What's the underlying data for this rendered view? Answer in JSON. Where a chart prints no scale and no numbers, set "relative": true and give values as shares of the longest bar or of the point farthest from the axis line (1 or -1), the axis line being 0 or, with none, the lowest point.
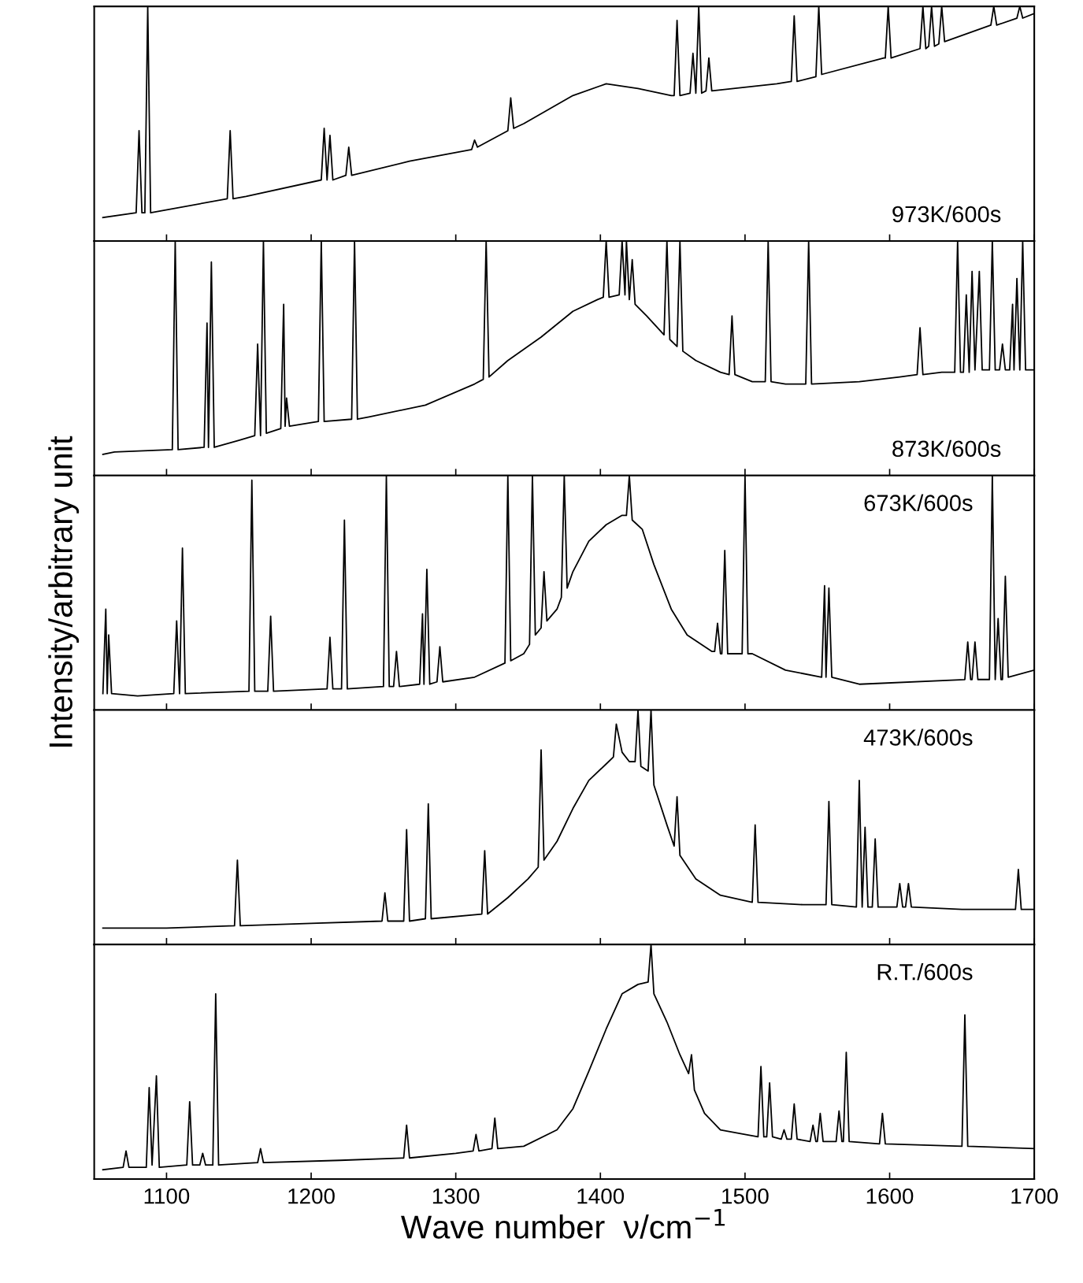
{
  "chart_data": [
    {
      "type": "line",
      "relative": true,
      "color": "#000000",
      "xlim": [
        1050,
        1700
      ],
      "xticks": [
        1100,
        1200,
        1300,
        1400,
        1500,
        1600,
        1700
      ],
      "tick_labels": false,
      "grid": false,
      "legend": false,
      "annotations": [
        "973K/600s"
      ],
      "x": [
        1056,
        1079,
        1081,
        1083,
        1085,
        1087,
        1089,
        1098,
        1142,
        1144,
        1146,
        1155,
        1207,
        1209,
        1211,
        1213,
        1215,
        1224,
        1226,
        1228,
        1268,
        1311,
        1313,
        1315,
        1336,
        1338,
        1340,
        1347,
        1381,
        1404,
        1426,
        1449,
        1451,
        1453,
        1455,
        1462,
        1464,
        1466,
        1468,
        1470,
        1473,
        1475,
        1477,
        1522,
        1532,
        1534,
        1536,
        1549,
        1551,
        1553,
        1596,
        1597,
        1599,
        1601,
        1621,
        1623,
        1625,
        1627,
        1629,
        1631,
        1634,
        1636,
        1638,
        1670,
        1672,
        1674,
        1688,
        1690,
        1692,
        1700
      ],
      "values": [
        0.1,
        0.12,
        0.47,
        0.12,
        0.12,
        1.0,
        0.12,
        0.13,
        0.18,
        0.47,
        0.18,
        0.19,
        0.26,
        0.48,
        0.26,
        0.45,
        0.26,
        0.28,
        0.4,
        0.28,
        0.34,
        0.39,
        0.43,
        0.4,
        0.47,
        0.61,
        0.48,
        0.5,
        0.62,
        0.67,
        0.65,
        0.62,
        0.62,
        0.94,
        0.62,
        0.63,
        0.8,
        0.63,
        1.0,
        0.63,
        0.64,
        0.78,
        0.64,
        0.67,
        0.68,
        0.96,
        0.68,
        0.7,
        1.0,
        0.71,
        0.78,
        0.78,
        1.0,
        0.78,
        0.82,
        1.0,
        0.82,
        0.83,
        1.0,
        0.83,
        0.84,
        1.0,
        0.85,
        0.92,
        1.0,
        0.92,
        0.95,
        1.0,
        0.95,
        0.97
      ]
    },
    {
      "type": "line",
      "relative": true,
      "color": "#000000",
      "xlim": [
        1050,
        1700
      ],
      "xticks": [
        1100,
        1200,
        1300,
        1400,
        1500,
        1600,
        1700
      ],
      "tick_labels": false,
      "grid": false,
      "legend": false,
      "annotations": [
        "873K/600s"
      ],
      "x": [
        1056,
        1064,
        1104,
        1106,
        1108,
        1126,
        1128,
        1129,
        1131,
        1133,
        1150,
        1161,
        1163,
        1165,
        1167,
        1169,
        1179,
        1181,
        1182,
        1183,
        1185,
        1205,
        1207,
        1209,
        1228,
        1230,
        1232,
        1240,
        1279,
        1313,
        1319,
        1321,
        1323,
        1336,
        1359,
        1381,
        1398,
        1402,
        1404,
        1406,
        1413,
        1415,
        1417,
        1418,
        1420,
        1422,
        1424,
        1432,
        1444,
        1446,
        1448,
        1453,
        1455,
        1457,
        1466,
        1483,
        1489,
        1491,
        1493,
        1505,
        1514,
        1516,
        1518,
        1528,
        1542,
        1544,
        1546,
        1579,
        1607,
        1619,
        1621,
        1623,
        1636,
        1645,
        1647,
        1649,
        1651,
        1653,
        1655,
        1657,
        1659,
        1662,
        1664,
        1669,
        1671,
        1673,
        1676,
        1678,
        1680,
        1683,
        1685,
        1686,
        1688,
        1690,
        1692,
        1694,
        1700
      ],
      "values": [
        0.09,
        0.1,
        0.11,
        1.0,
        0.11,
        0.12,
        0.65,
        0.12,
        0.91,
        0.12,
        0.15,
        0.17,
        0.56,
        0.17,
        1.0,
        0.18,
        0.2,
        0.73,
        0.21,
        0.33,
        0.21,
        0.23,
        1.0,
        0.23,
        0.24,
        1.0,
        0.24,
        0.25,
        0.3,
        0.39,
        0.41,
        1.0,
        0.42,
        0.49,
        0.59,
        0.7,
        0.75,
        0.76,
        1.0,
        0.76,
        0.77,
        1.0,
        0.77,
        1.0,
        0.75,
        0.92,
        0.73,
        0.68,
        0.6,
        1.0,
        0.58,
        0.55,
        1.0,
        0.53,
        0.49,
        0.44,
        0.43,
        0.68,
        0.43,
        0.4,
        0.4,
        1.0,
        0.4,
        0.39,
        0.39,
        1.0,
        0.39,
        0.4,
        0.42,
        0.43,
        0.63,
        0.43,
        0.44,
        0.44,
        1.0,
        0.44,
        0.44,
        0.77,
        0.44,
        0.87,
        0.45,
        0.87,
        0.45,
        0.45,
        1.0,
        0.45,
        0.45,
        0.56,
        0.45,
        0.45,
        0.73,
        0.45,
        0.84,
        0.45,
        1.0,
        0.45,
        0.45
      ]
    },
    {
      "type": "line",
      "relative": true,
      "color": "#000000",
      "xlim": [
        1050,
        1700
      ],
      "xticks": [
        1100,
        1200,
        1300,
        1400,
        1500,
        1600,
        1700
      ],
      "tick_labels": false,
      "grid": false,
      "legend": false,
      "ylabel": "Intensity/arbitrary unit",
      "annotations": [
        "673K/600s"
      ],
      "x": [
        1056,
        1058,
        1059,
        1060,
        1062,
        1080,
        1105,
        1107,
        1109,
        1111,
        1113,
        1157,
        1159,
        1161,
        1170,
        1172,
        1174,
        1211,
        1213,
        1215,
        1221,
        1223,
        1225,
        1250,
        1252,
        1254,
        1257,
        1259,
        1261,
        1275,
        1277,
        1278,
        1280,
        1282,
        1287,
        1289,
        1291,
        1313,
        1334,
        1336,
        1338,
        1347,
        1351,
        1353,
        1355,
        1359,
        1361,
        1363,
        1370,
        1373,
        1375,
        1377,
        1381,
        1392,
        1404,
        1415,
        1418,
        1420,
        1422,
        1429,
        1437,
        1449,
        1460,
        1477,
        1479,
        1481,
        1483,
        1484,
        1486,
        1488,
        1498,
        1500,
        1502,
        1505,
        1528,
        1553,
        1555,
        1556,
        1558,
        1560,
        1579,
        1652,
        1654,
        1656,
        1657,
        1659,
        1661,
        1669,
        1671,
        1673,
        1675,
        1677,
        1678,
        1680,
        1682,
        1700
      ],
      "values": [
        0.07,
        0.43,
        0.07,
        0.32,
        0.07,
        0.06,
        0.07,
        0.38,
        0.07,
        0.69,
        0.07,
        0.08,
        0.98,
        0.08,
        0.08,
        0.4,
        0.08,
        0.09,
        0.31,
        0.09,
        0.09,
        0.81,
        0.09,
        0.1,
        1.0,
        0.1,
        0.1,
        0.25,
        0.1,
        0.11,
        0.41,
        0.11,
        0.6,
        0.11,
        0.12,
        0.27,
        0.12,
        0.14,
        0.2,
        1.0,
        0.21,
        0.24,
        0.28,
        1.0,
        0.32,
        0.35,
        0.59,
        0.38,
        0.43,
        0.48,
        1.0,
        0.52,
        0.59,
        0.72,
        0.79,
        0.83,
        0.83,
        1.0,
        0.81,
        0.77,
        0.62,
        0.43,
        0.32,
        0.25,
        0.25,
        0.37,
        0.24,
        0.24,
        0.68,
        0.24,
        0.24,
        1.0,
        0.24,
        0.24,
        0.17,
        0.14,
        0.53,
        0.14,
        0.52,
        0.14,
        0.11,
        0.13,
        0.29,
        0.13,
        0.13,
        0.29,
        0.13,
        0.13,
        1.0,
        0.13,
        0.39,
        0.13,
        0.13,
        0.57,
        0.14,
        0.17
      ]
    },
    {
      "type": "line",
      "relative": true,
      "color": "#000000",
      "xlim": [
        1050,
        1700
      ],
      "xticks": [
        1100,
        1200,
        1300,
        1400,
        1500,
        1600,
        1700
      ],
      "tick_labels": false,
      "grid": false,
      "legend": false,
      "annotations": [
        "473K/600s"
      ],
      "x": [
        1056,
        1100,
        1147,
        1149,
        1151,
        1200,
        1249,
        1251,
        1253,
        1264,
        1266,
        1268,
        1279,
        1281,
        1283,
        1318,
        1320,
        1322,
        1336,
        1350,
        1357,
        1359,
        1361,
        1370,
        1381,
        1392,
        1404,
        1409,
        1411,
        1415,
        1420,
        1424,
        1426,
        1428,
        1433,
        1435,
        1437,
        1446,
        1451,
        1453,
        1455,
        1466,
        1483,
        1505,
        1507,
        1509,
        1540,
        1556,
        1558,
        1560,
        1577,
        1579,
        1581,
        1583,
        1585,
        1588,
        1590,
        1592,
        1605,
        1607,
        1609,
        1611,
        1613,
        1615,
        1650,
        1687,
        1689,
        1691,
        1700
      ],
      "values": [
        0.07,
        0.07,
        0.08,
        0.36,
        0.08,
        0.09,
        0.1,
        0.22,
        0.1,
        0.1,
        0.49,
        0.1,
        0.11,
        0.6,
        0.11,
        0.13,
        0.4,
        0.13,
        0.2,
        0.28,
        0.33,
        0.83,
        0.36,
        0.44,
        0.58,
        0.7,
        0.77,
        0.8,
        0.94,
        0.82,
        0.78,
        0.78,
        1.0,
        0.76,
        0.74,
        1.0,
        0.68,
        0.51,
        0.42,
        0.63,
        0.38,
        0.28,
        0.21,
        0.18,
        0.51,
        0.18,
        0.17,
        0.17,
        0.61,
        0.17,
        0.16,
        0.7,
        0.16,
        0.5,
        0.16,
        0.16,
        0.45,
        0.16,
        0.16,
        0.26,
        0.16,
        0.16,
        0.26,
        0.16,
        0.15,
        0.15,
        0.32,
        0.15,
        0.15
      ]
    },
    {
      "type": "line",
      "relative": true,
      "color": "#000000",
      "xlim": [
        1050,
        1700
      ],
      "xticks": [
        1100,
        1200,
        1300,
        1400,
        1500,
        1600,
        1700
      ],
      "tick_labels": "x",
      "grid": false,
      "legend": false,
      "xlabel": "Wave number  ν/cm$^{−1}$",
      "annotations": [
        "R.T./600s"
      ],
      "x": [
        1056,
        1070,
        1072,
        1074,
        1086,
        1088,
        1090,
        1093,
        1095,
        1114,
        1116,
        1118,
        1123,
        1125,
        1127,
        1132,
        1134,
        1136,
        1163,
        1165,
        1167,
        1220,
        1264,
        1266,
        1268,
        1300,
        1312,
        1314,
        1316,
        1325,
        1327,
        1329,
        1347,
        1370,
        1381,
        1392,
        1404,
        1415,
        1426,
        1433,
        1435,
        1437,
        1446,
        1455,
        1461,
        1463,
        1465,
        1472,
        1483,
        1500,
        1509,
        1511,
        1513,
        1515,
        1517,
        1519,
        1525,
        1527,
        1529,
        1532,
        1534,
        1536,
        1545,
        1547,
        1549,
        1550,
        1552,
        1554,
        1563,
        1565,
        1567,
        1568,
        1570,
        1572,
        1593,
        1595,
        1597,
        1650,
        1652,
        1654,
        1700
      ],
      "values": [
        0.04,
        0.05,
        0.12,
        0.05,
        0.05,
        0.39,
        0.06,
        0.44,
        0.05,
        0.06,
        0.33,
        0.06,
        0.06,
        0.11,
        0.06,
        0.06,
        0.79,
        0.06,
        0.07,
        0.13,
        0.07,
        0.08,
        0.09,
        0.23,
        0.09,
        0.11,
        0.12,
        0.19,
        0.12,
        0.13,
        0.26,
        0.13,
        0.14,
        0.21,
        0.3,
        0.46,
        0.64,
        0.79,
        0.83,
        0.84,
        1.0,
        0.79,
        0.67,
        0.53,
        0.45,
        0.53,
        0.38,
        0.28,
        0.21,
        0.19,
        0.18,
        0.48,
        0.18,
        0.18,
        0.41,
        0.18,
        0.17,
        0.21,
        0.17,
        0.17,
        0.32,
        0.17,
        0.16,
        0.23,
        0.16,
        0.16,
        0.28,
        0.16,
        0.16,
        0.29,
        0.16,
        0.16,
        0.54,
        0.16,
        0.15,
        0.28,
        0.15,
        0.14,
        0.7,
        0.14,
        0.13
      ]
    }
  ]
}
